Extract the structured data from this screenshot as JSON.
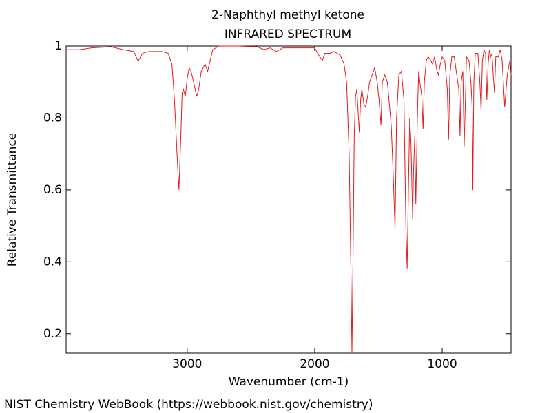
{
  "chart_data": {
    "type": "line",
    "title": "2-Naphthyl methyl ketone",
    "subtitle": "INFRARED SPECTRUM",
    "x_label": "Wavenumber (cm-1)",
    "y_label": "Relative Transmittance",
    "footer": "NIST Chemistry WebBook (https://webbook.nist.gov/chemistry)",
    "color": "#e41a1c",
    "xlim": [
      3950,
      460
    ],
    "ylim": [
      0.146,
      1
    ],
    "xticks": [
      3000,
      2000,
      1000
    ],
    "yticks": [
      0.2,
      0.4,
      0.6,
      0.8,
      1
    ],
    "x": [
      3950,
      3850,
      3750,
      3600,
      3500,
      3420,
      3385,
      3350,
      3300,
      3200,
      3150,
      3120,
      3100,
      3080,
      3065,
      3050,
      3040,
      3030,
      3015,
      3000,
      2985,
      2970,
      2950,
      2925,
      2910,
      2890,
      2860,
      2840,
      2820,
      2800,
      2750,
      2600,
      2450,
      2400,
      2350,
      2300,
      2250,
      2100,
      2000,
      1960,
      1940,
      1920,
      1880,
      1850,
      1800,
      1770,
      1750,
      1730,
      1715,
      1708,
      1700,
      1690,
      1680,
      1670,
      1660,
      1650,
      1640,
      1630,
      1615,
      1600,
      1585,
      1570,
      1550,
      1530,
      1510,
      1495,
      1480,
      1470,
      1450,
      1430,
      1400,
      1385,
      1370,
      1358,
      1340,
      1320,
      1300,
      1285,
      1275,
      1265,
      1255,
      1245,
      1232,
      1225,
      1215,
      1207,
      1195,
      1185,
      1175,
      1160,
      1150,
      1140,
      1125,
      1110,
      1090,
      1075,
      1060,
      1040,
      1030,
      1015,
      1000,
      980,
      960,
      950,
      940,
      925,
      905,
      890,
      870,
      860,
      852,
      838,
      828,
      818,
      810,
      790,
      775,
      765,
      760,
      752,
      740,
      720,
      705,
      695,
      685,
      672,
      660,
      650,
      640,
      630,
      620,
      610,
      600,
      590,
      580,
      560,
      545,
      530,
      510,
      490,
      470,
      460
    ],
    "values": [
      0.99,
      0.99,
      0.995,
      0.998,
      0.99,
      0.985,
      0.958,
      0.98,
      0.985,
      0.985,
      0.98,
      0.95,
      0.85,
      0.7,
      0.6,
      0.75,
      0.87,
      0.88,
      0.86,
      0.91,
      0.94,
      0.93,
      0.9,
      0.86,
      0.88,
      0.93,
      0.95,
      0.93,
      0.96,
      0.99,
      1.0,
      1.0,
      0.998,
      0.99,
      0.995,
      0.985,
      0.995,
      0.995,
      0.995,
      0.97,
      0.96,
      0.98,
      0.98,
      0.985,
      0.975,
      0.95,
      0.9,
      0.7,
      0.35,
      0.146,
      0.4,
      0.75,
      0.86,
      0.88,
      0.82,
      0.76,
      0.85,
      0.88,
      0.84,
      0.83,
      0.86,
      0.9,
      0.92,
      0.94,
      0.9,
      0.85,
      0.78,
      0.9,
      0.92,
      0.9,
      0.78,
      0.65,
      0.49,
      0.8,
      0.92,
      0.93,
      0.85,
      0.5,
      0.38,
      0.6,
      0.8,
      0.73,
      0.52,
      0.65,
      0.75,
      0.56,
      0.8,
      0.93,
      0.9,
      0.86,
      0.77,
      0.9,
      0.96,
      0.97,
      0.96,
      0.95,
      0.97,
      0.93,
      0.92,
      0.95,
      0.97,
      0.96,
      0.88,
      0.74,
      0.92,
      0.97,
      0.97,
      0.93,
      0.88,
      0.75,
      0.9,
      0.93,
      0.72,
      0.85,
      0.97,
      0.96,
      0.9,
      0.83,
      0.6,
      0.9,
      0.98,
      0.98,
      0.9,
      0.82,
      0.96,
      0.99,
      0.98,
      0.85,
      0.95,
      0.99,
      0.97,
      0.98,
      0.92,
      0.87,
      0.97,
      0.97,
      0.99,
      0.96,
      0.83,
      0.92,
      0.96,
      0.92
    ]
  }
}
